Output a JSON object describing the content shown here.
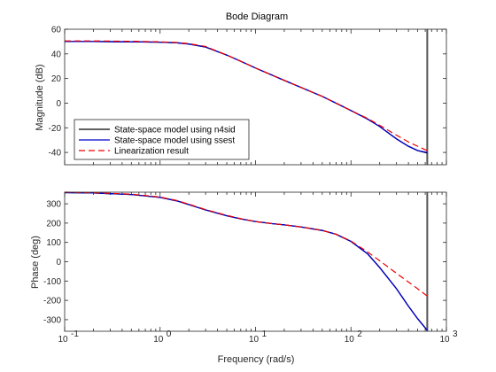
{
  "chart_data": {
    "type": "line",
    "title": "Bode Diagram",
    "xlabel": "Frequency (rad/s)",
    "x_scale": "log",
    "xlim": [
      0.1,
      1000
    ],
    "x_ticks": [
      0.1,
      1,
      10,
      100,
      1000
    ],
    "x_tick_labels": [
      {
        "base": "10",
        "exp": "-1"
      },
      {
        "base": "10",
        "exp": "0"
      },
      {
        "base": "10",
        "exp": "1"
      },
      {
        "base": "10",
        "exp": "2"
      },
      {
        "base": "10",
        "exp": "3"
      }
    ],
    "vline": 630,
    "legend": {
      "placement": "bottom-left",
      "entries": [
        {
          "label": "State-space model using n4sid",
          "color": "#000000",
          "style": "solid"
        },
        {
          "label": "State-space model using ssest",
          "color": "#0000cc",
          "style": "solid"
        },
        {
          "label": "Linearization result",
          "color": "#ee0000",
          "style": "dashed"
        }
      ]
    },
    "panels": [
      {
        "id": "magnitude",
        "ylabel": "Magnitude (dB)",
        "ylim": [
          -50,
          60
        ],
        "y_ticks": [
          -40,
          -20,
          0,
          20,
          40,
          60
        ],
        "series": [
          {
            "key": "n4sid",
            "color": "#000000",
            "style": "solid",
            "x": [
              0.1,
              0.2,
              0.5,
              1,
              1.5,
              2,
              3,
              5,
              7,
              10,
              20,
              50,
              100,
              150,
              200,
              300,
              400,
              500,
              630
            ],
            "y": [
              50,
              50,
              49.8,
              49.5,
              49,
              48,
              45.5,
              39,
              34,
              28.5,
              18.5,
              5.5,
              -6,
              -13,
              -19,
              -29,
              -35,
              -38.5,
              -40.5
            ]
          },
          {
            "key": "ssest",
            "color": "#0000cc",
            "style": "solid",
            "x": [
              0.1,
              0.2,
              0.5,
              1,
              1.5,
              2,
              3,
              5,
              7,
              10,
              20,
              50,
              100,
              150,
              200,
              300,
              400,
              500,
              630
            ],
            "y": [
              50,
              50,
              49.8,
              49.5,
              49,
              48,
              45.5,
              39,
              34,
              28.5,
              18.5,
              5.5,
              -6,
              -13,
              -19,
              -29,
              -35,
              -38.5,
              -40
            ]
          },
          {
            "key": "linearization",
            "color": "#ee0000",
            "style": "dashed",
            "x": [
              0.1,
              0.2,
              0.5,
              1,
              1.5,
              2,
              3,
              5,
              7,
              10,
              20,
              50,
              100,
              150,
              200,
              300,
              400,
              500,
              630
            ],
            "y": [
              50.5,
              50.5,
              50.2,
              49.8,
              49.2,
              48.3,
              46,
              39,
              34,
              28.5,
              18.5,
              5.5,
              -6,
              -12.5,
              -18,
              -26,
              -31.5,
              -35,
              -38.5
            ]
          }
        ]
      },
      {
        "id": "phase",
        "ylabel": "Phase (deg)",
        "ylim": [
          -360,
          360
        ],
        "y_ticks": [
          -300,
          -200,
          -100,
          0,
          100,
          200,
          300
        ],
        "series": [
          {
            "key": "n4sid",
            "color": "#000000",
            "style": "solid",
            "x": [
              0.1,
              0.2,
              0.5,
              1,
              1.5,
              2,
              3,
              5,
              7,
              10,
              15,
              20,
              30,
              50,
              70,
              100,
              150,
              200,
              300,
              400,
              500,
              630
            ],
            "y": [
              358,
              356,
              348,
              333,
              315,
              296,
              268,
              238,
              222,
              208,
              197,
              191,
              180,
              162,
              142,
              105,
              40,
              -30,
              -140,
              -230,
              -295,
              -355
            ]
          },
          {
            "key": "ssest",
            "color": "#0000cc",
            "style": "solid",
            "x": [
              0.1,
              0.2,
              0.5,
              1,
              1.5,
              2,
              3,
              5,
              7,
              10,
              15,
              20,
              30,
              50,
              70,
              100,
              150,
              200,
              300,
              400,
              500,
              630
            ],
            "y": [
              358,
              356,
              348,
              333,
              315,
              296,
              268,
              238,
              222,
              208,
              197,
              191,
              180,
              162,
              142,
              105,
              40,
              -30,
              -140,
              -230,
              -295,
              -355
            ]
          },
          {
            "key": "linearization",
            "color": "#ee0000",
            "style": "dashed",
            "x": [
              0.1,
              0.2,
              0.5,
              1,
              1.5,
              2,
              3,
              5,
              7,
              10,
              15,
              20,
              30,
              50,
              70,
              100,
              150,
              200,
              300,
              400,
              500,
              630
            ],
            "y": [
              360,
              357,
              350,
              335,
              317,
              298,
              270,
              240,
              223,
              208,
              197,
              191,
              180,
              162,
              142,
              107,
              50,
              5,
              -60,
              -105,
              -140,
              -178
            ]
          }
        ]
      }
    ]
  }
}
